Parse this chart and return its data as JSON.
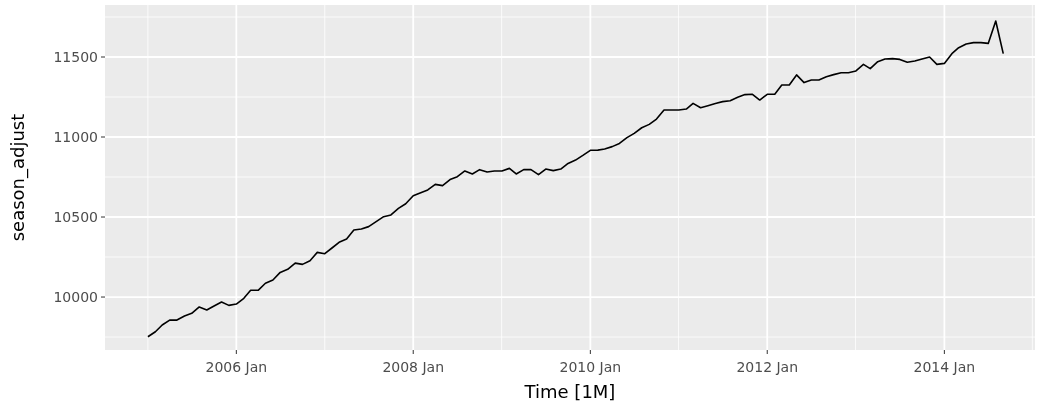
{
  "chart_data": {
    "type": "line",
    "xlabel": "Time [1M]",
    "ylabel": "season_adjust",
    "xlim": [
      "2004-07-08",
      "2015-01-10"
    ],
    "xticks": [
      {
        "value": "2006-01",
        "label": "2006 Jan"
      },
      {
        "value": "2008-01",
        "label": "2008 Jan"
      },
      {
        "value": "2010-01",
        "label": "2010 Jan"
      },
      {
        "value": "2012-01",
        "label": "2012 Jan"
      },
      {
        "value": "2014-01",
        "label": "2014 Jan"
      }
    ],
    "ylim": [
      9669,
      11825
    ],
    "yticks": [
      10000,
      10500,
      11000,
      11500
    ],
    "grid": true,
    "x": [
      "2005-01",
      "2005-02",
      "2005-03",
      "2005-04",
      "2005-05",
      "2005-06",
      "2005-07",
      "2005-08",
      "2005-09",
      "2005-10",
      "2005-11",
      "2005-12",
      "2006-01",
      "2006-02",
      "2006-03",
      "2006-04",
      "2006-05",
      "2006-06",
      "2006-07",
      "2006-08",
      "2006-09",
      "2006-10",
      "2006-11",
      "2006-12",
      "2007-01",
      "2007-02",
      "2007-03",
      "2007-04",
      "2007-05",
      "2007-06",
      "2007-07",
      "2007-08",
      "2007-09",
      "2007-10",
      "2007-11",
      "2007-12",
      "2008-01",
      "2008-02",
      "2008-03",
      "2008-04",
      "2008-05",
      "2008-06",
      "2008-07",
      "2008-08",
      "2008-09",
      "2008-10",
      "2008-11",
      "2008-12",
      "2009-01",
      "2009-02",
      "2009-03",
      "2009-04",
      "2009-05",
      "2009-06",
      "2009-07",
      "2009-08",
      "2009-09",
      "2009-10",
      "2009-11",
      "2009-12",
      "2010-01",
      "2010-02",
      "2010-03",
      "2010-04",
      "2010-05",
      "2010-06",
      "2010-07",
      "2010-08",
      "2010-09",
      "2010-10",
      "2010-11",
      "2010-12",
      "2011-01",
      "2011-02",
      "2011-03",
      "2011-04",
      "2011-05",
      "2011-06",
      "2011-07",
      "2011-08",
      "2011-09",
      "2011-10",
      "2011-11",
      "2011-12",
      "2012-01",
      "2012-02",
      "2012-03",
      "2012-04",
      "2012-05",
      "2012-06",
      "2012-07",
      "2012-08",
      "2012-09",
      "2012-10",
      "2012-11",
      "2012-12",
      "2013-01",
      "2013-02",
      "2013-03",
      "2013-04",
      "2013-05",
      "2013-06",
      "2013-07",
      "2013-08",
      "2013-09",
      "2013-10",
      "2013-11",
      "2013-12",
      "2014-01",
      "2014-02",
      "2014-03",
      "2014-04",
      "2014-05",
      "2014-06",
      "2014-07",
      "2014-08",
      "2014-09"
    ],
    "series": [
      {
        "color": "#000000",
        "values": [
          9752,
          9783,
          9825,
          9856,
          9856,
          9881,
          9898,
          9938,
          9919,
          9944,
          9969,
          9948,
          9956,
          9992,
          10042,
          10042,
          10086,
          10106,
          10154,
          10173,
          10212,
          10204,
          10227,
          10279,
          10271,
          10308,
          10342,
          10362,
          10419,
          10425,
          10440,
          10471,
          10502,
          10513,
          10554,
          10583,
          10633,
          10652,
          10669,
          10704,
          10696,
          10734,
          10752,
          10788,
          10769,
          10796,
          10781,
          10788,
          10788,
          10804,
          10769,
          10796,
          10796,
          10765,
          10800,
          10790,
          10800,
          10835,
          10856,
          10885,
          10917,
          10918,
          10925,
          10940,
          10960,
          10996,
          11023,
          11058,
          11079,
          11112,
          11169,
          11169,
          11169,
          11175,
          11210,
          11183,
          11196,
          11210,
          11221,
          11227,
          11248,
          11265,
          11267,
          11231,
          11267,
          11267,
          11325,
          11325,
          11388,
          11340,
          11356,
          11356,
          11377,
          11390,
          11402,
          11402,
          11413,
          11454,
          11427,
          11471,
          11488,
          11490,
          11485,
          11467,
          11475,
          11488,
          11500,
          11454,
          11460,
          11521,
          11558,
          11581,
          11590,
          11590,
          11585,
          11725,
          11521
        ]
      }
    ]
  }
}
